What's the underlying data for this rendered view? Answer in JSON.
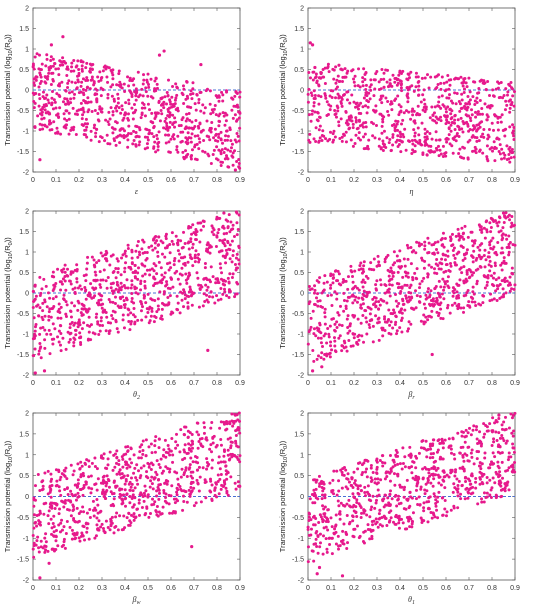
{
  "figure": {
    "marker_color": "#e6198c",
    "reference_color": "#4a6fd6",
    "axis_color": "#555555"
  },
  "chart_data": [
    {
      "type": "scatter",
      "xlabel": "ε",
      "ylabel": "Transmission potential (log10(R0))",
      "xlim": [
        0,
        0.9
      ],
      "ylim": [
        -2,
        2
      ],
      "xticks": [
        "0",
        "0.1",
        "0.2",
        "0.3",
        "0.4",
        "0.5",
        "0.6",
        "0.7",
        "0.8",
        "0.9"
      ],
      "yticks": [
        "-2",
        "-1.5",
        "-1",
        "-0.5",
        "0",
        "0.5",
        "1",
        "1.5",
        "2"
      ],
      "reference_line_y": 0,
      "trend": {
        "start": 0.0,
        "end": -1.0,
        "spread": 1.9
      },
      "outliers": [
        [
          0.08,
          1.1
        ],
        [
          0.13,
          1.3
        ],
        [
          0.55,
          0.85
        ],
        [
          0.57,
          0.95
        ],
        [
          0.73,
          0.62
        ],
        [
          0.03,
          -1.7
        ],
        [
          0.88,
          -1.95
        ]
      ],
      "grid": false
    },
    {
      "type": "scatter",
      "xlabel": "η",
      "ylabel": "Transmission potential (log10(R0))",
      "xlim": [
        0,
        0.9
      ],
      "ylim": [
        -2,
        2
      ],
      "xticks": [
        "0",
        "0.1",
        "0.2",
        "0.3",
        "0.4",
        "0.5",
        "0.6",
        "0.7",
        "0.8",
        "0.9"
      ],
      "yticks": [
        "-2",
        "-1.5",
        "-1",
        "-0.5",
        "0",
        "0.5",
        "1",
        "1.5",
        "2"
      ],
      "reference_line_y": 0,
      "trend": {
        "start": -0.3,
        "end": -0.8,
        "spread": 2.0
      },
      "outliers": [
        [
          0.01,
          1.15
        ],
        [
          0.02,
          1.1
        ],
        [
          0.03,
          0.55
        ],
        [
          0.05,
          0.3
        ]
      ],
      "grid": false
    },
    {
      "type": "scatter",
      "xlabel": "θ2",
      "ylabel": "Transmission potential (log10(R0))",
      "xlim": [
        0,
        0.9
      ],
      "ylim": [
        -2,
        2
      ],
      "xticks": [
        "0",
        "0.1",
        "0.2",
        "0.3",
        "0.4",
        "0.5",
        "0.6",
        "0.7",
        "0.8",
        "0.9"
      ],
      "yticks": [
        "-2",
        "-1.5",
        "-1",
        "-0.5",
        "0",
        "0.5",
        "1",
        "1.5",
        "2"
      ],
      "reference_line_y": 0,
      "trend": {
        "start": -0.6,
        "end": 1.0,
        "spread": 2.1
      },
      "outliers": [
        [
          0.01,
          -1.95
        ],
        [
          0.05,
          -1.9
        ],
        [
          0.76,
          -1.4
        ],
        [
          0.83,
          1.95
        ]
      ],
      "grid": false
    },
    {
      "type": "scatter",
      "xlabel": "βr",
      "ylabel": "Transmission potential (log10(R0))",
      "xlim": [
        0,
        0.9
      ],
      "ylim": [
        -2,
        2
      ],
      "xticks": [
        "0",
        "0.1",
        "0.2",
        "0.3",
        "0.4",
        "0.5",
        "0.6",
        "0.7",
        "0.8",
        "0.9"
      ],
      "yticks": [
        "-2",
        "-1.5",
        "-1",
        "-0.5",
        "0",
        "0.5",
        "1",
        "1.5",
        "2"
      ],
      "reference_line_y": 0,
      "trend": {
        "start": -0.7,
        "end": 1.0,
        "spread": 2.1
      },
      "outliers": [
        [
          0.02,
          -1.9
        ],
        [
          0.06,
          -1.8
        ],
        [
          0.54,
          -1.5
        ],
        [
          0.85,
          1.95
        ]
      ],
      "grid": false
    },
    {
      "type": "scatter",
      "xlabel": "βw",
      "ylabel": "Transmission potential (log10(R0))",
      "xlim": [
        0,
        0.9
      ],
      "ylim": [
        -2,
        2
      ],
      "xticks": [
        "0",
        "0.1",
        "0.2",
        "0.3",
        "0.4",
        "0.5",
        "0.6",
        "0.7",
        "0.8",
        "0.9"
      ],
      "yticks": [
        "-2",
        "-1.5",
        "-1",
        "-0.5",
        "0",
        "0.5",
        "1",
        "1.5",
        "2"
      ],
      "reference_line_y": 0,
      "trend": {
        "start": -0.5,
        "end": 1.1,
        "spread": 2.0
      },
      "outliers": [
        [
          0.03,
          -1.95
        ],
        [
          0.07,
          -1.6
        ],
        [
          0.69,
          -1.2
        ],
        [
          0.88,
          1.95
        ]
      ],
      "grid": false
    },
    {
      "type": "scatter",
      "xlabel": "θ1",
      "ylabel": "Transmission potential (log10(R0))",
      "xlim": [
        0,
        0.9
      ],
      "ylim": [
        -2,
        2
      ],
      "xticks": [
        "0",
        "0.1",
        "0.2",
        "0.3",
        "0.4",
        "0.5",
        "0.6",
        "0.7",
        "0.8",
        "0.9"
      ],
      "yticks": [
        "-2",
        "-1.5",
        "-1",
        "-0.5",
        "0",
        "0.5",
        "1",
        "1.5",
        "2"
      ],
      "reference_line_y": 0,
      "trend": {
        "start": -0.6,
        "end": 1.1,
        "spread": 2.0
      },
      "outliers": [
        [
          0.04,
          -1.85
        ],
        [
          0.05,
          -1.7
        ],
        [
          0.15,
          -1.9
        ],
        [
          0.83,
          1.95
        ]
      ],
      "grid": false
    }
  ]
}
